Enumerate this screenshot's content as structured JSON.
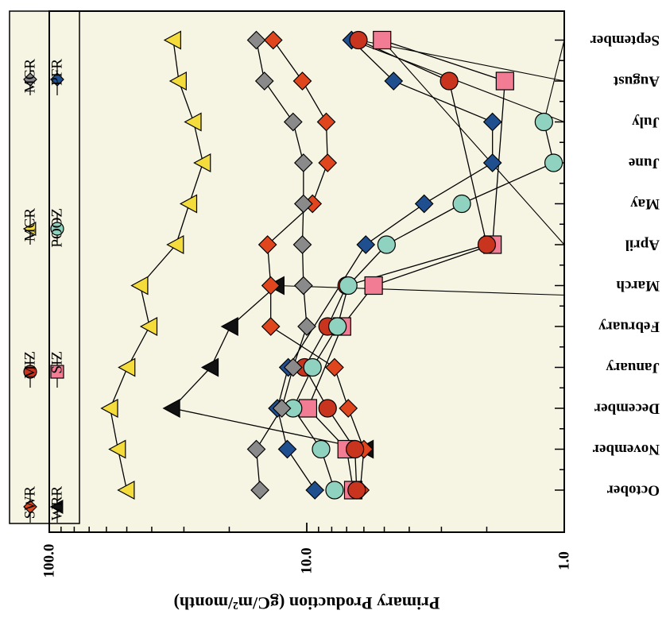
{
  "chart_data": {
    "type": "line",
    "ylabel": "Primary Production (gC/m²/month)",
    "xlabel": "",
    "y_scale": "log",
    "ylim": [
      1.0,
      100.0
    ],
    "y_tick_labels": [
      "1.0",
      "10.0",
      "100.0"
    ],
    "categories": [
      "October",
      "November",
      "December",
      "January",
      "February",
      "March",
      "April",
      "May",
      "June",
      "July",
      "August",
      "September"
    ],
    "legend_placement": "bottom-left",
    "legend": [
      "WRR",
      "SIZ",
      "PFR",
      "SWR",
      "MIZ",
      "POOZ",
      "MCR",
      "MGR"
    ],
    "series": [
      {
        "name": "WRR",
        "marker": "triangle",
        "color": "#111111",
        "values": [
          null,
          5.9,
          33.3,
          23.6,
          19.8,
          13.1,
          null,
          null,
          null,
          null,
          null,
          null
        ],
        "leader_to": "March"
      },
      {
        "name": "SIZ",
        "marker": "square",
        "color": "#f27c94",
        "values": [
          6.6,
          7.0,
          9.9,
          null,
          7.3,
          5.5,
          1.9,
          null,
          null,
          null,
          1.7,
          5.1
        ],
        "leader_to": "April"
      },
      {
        "name": "PFR",
        "marker": "diamond",
        "color": "#1f4f8f",
        "values": [
          9.3,
          11.9,
          13.0,
          11.8,
          null,
          null,
          5.9,
          3.5,
          1.9,
          1.9,
          4.6,
          6.7
        ],
        "leader_to": "July"
      },
      {
        "name": "SWR",
        "marker": "diamond",
        "color": "#e0461e",
        "values": [
          6.2,
          6.0,
          6.9,
          7.8,
          13.8,
          13.8,
          14.2,
          9.5,
          8.3,
          8.4,
          10.4,
          13.5
        ],
        "leader_to": null
      },
      {
        "name": "MIZ",
        "marker": "circle",
        "color": "#c9341f",
        "values": [
          6.4,
          6.5,
          8.3,
          10.2,
          8.3,
          7.0,
          2.0,
          null,
          null,
          null,
          2.8,
          6.3
        ],
        "leader_to": "August"
      },
      {
        "name": "POOZ",
        "marker": "circle",
        "color": "#8fd2bf",
        "values": [
          7.8,
          8.8,
          11.3,
          9.5,
          7.6,
          6.9,
          4.9,
          2.5,
          1.1,
          1.2,
          null,
          null
        ],
        "leader_to": "September"
      },
      {
        "name": "MCR",
        "marker": "triangle",
        "color": "#f3dc3c",
        "values": [
          50.0,
          54.1,
          58.0,
          49.7,
          40.8,
          44.3,
          32.2,
          28.6,
          25.3,
          27.5,
          31.4,
          33.0
        ],
        "leader_to": null
      },
      {
        "name": "MGR",
        "marker": "diamond",
        "color": "#8a8a8a",
        "values": [
          15.2,
          15.7,
          12.5,
          11.3,
          10.0,
          10.3,
          10.4,
          10.3,
          10.3,
          11.3,
          14.6,
          15.7
        ],
        "leader_to": null
      }
    ]
  }
}
